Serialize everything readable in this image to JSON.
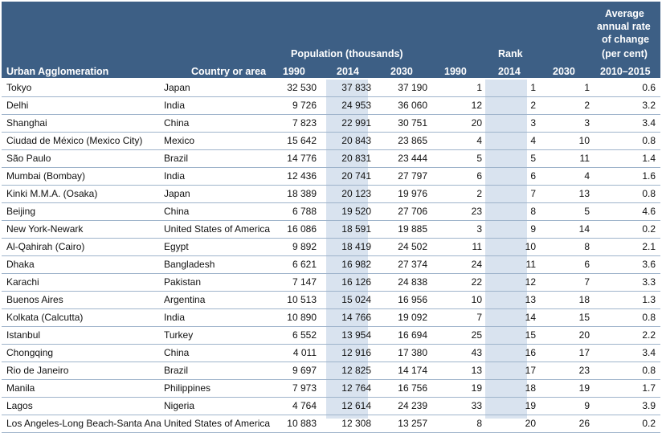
{
  "header": {
    "agglomeration": "Urban Agglomeration",
    "country": "Country or area",
    "population_group": "Population (thousands)",
    "rank_group": "Rank",
    "rate_line1": "Average",
    "rate_line2": "annual rate",
    "rate_line3": "of change",
    "rate_line4": "(per cent)",
    "pop_1990": "1990",
    "pop_2014": "2014",
    "pop_2030": "2030",
    "rank_1990": "1990",
    "rank_2014": "2014",
    "rank_2030": "2030",
    "rate_period": "2010–2015"
  },
  "rows": [
    {
      "city": "Tokyo",
      "country": "Japan",
      "p1990": "32 530",
      "p2014": "37 833",
      "p2030": "37 190",
      "r1990": "1",
      "r2014": "1",
      "r2030": "1",
      "rate": "0.6"
    },
    {
      "city": "Delhi",
      "country": "India",
      "p1990": "9 726",
      "p2014": "24 953",
      "p2030": "36 060",
      "r1990": "12",
      "r2014": "2",
      "r2030": "2",
      "rate": "3.2"
    },
    {
      "city": "Shanghai",
      "country": "China",
      "p1990": "7 823",
      "p2014": "22 991",
      "p2030": "30 751",
      "r1990": "20",
      "r2014": "3",
      "r2030": "3",
      "rate": "3.4"
    },
    {
      "city": "Ciudad de México (Mexico City)",
      "country": "Mexico",
      "p1990": "15 642",
      "p2014": "20 843",
      "p2030": "23 865",
      "r1990": "4",
      "r2014": "4",
      "r2030": "10",
      "rate": "0.8"
    },
    {
      "city": "São Paulo",
      "country": "Brazil",
      "p1990": "14 776",
      "p2014": "20 831",
      "p2030": "23 444",
      "r1990": "5",
      "r2014": "5",
      "r2030": "11",
      "rate": "1.4"
    },
    {
      "city": "Mumbai (Bombay)",
      "country": "India",
      "p1990": "12 436",
      "p2014": "20 741",
      "p2030": "27 797",
      "r1990": "6",
      "r2014": "6",
      "r2030": "4",
      "rate": "1.6"
    },
    {
      "city": "Kinki M.M.A. (Osaka)",
      "country": "Japan",
      "p1990": "18 389",
      "p2014": "20 123",
      "p2030": "19 976",
      "r1990": "2",
      "r2014": "7",
      "r2030": "13",
      "rate": "0.8"
    },
    {
      "city": "Beijing",
      "country": "China",
      "p1990": "6 788",
      "p2014": "19 520",
      "p2030": "27 706",
      "r1990": "23",
      "r2014": "8",
      "r2030": "5",
      "rate": "4.6"
    },
    {
      "city": "New York-Newark",
      "country": "United States of America",
      "p1990": "16 086",
      "p2014": "18 591",
      "p2030": "19 885",
      "r1990": "3",
      "r2014": "9",
      "r2030": "14",
      "rate": "0.2"
    },
    {
      "city": "Al-Qahirah (Cairo)",
      "country": "Egypt",
      "p1990": "9 892",
      "p2014": "18 419",
      "p2030": "24 502",
      "r1990": "11",
      "r2014": "10",
      "r2030": "8",
      "rate": "2.1"
    },
    {
      "city": "Dhaka",
      "country": "Bangladesh",
      "p1990": "6 621",
      "p2014": "16 982",
      "p2030": "27 374",
      "r1990": "24",
      "r2014": "11",
      "r2030": "6",
      "rate": "3.6"
    },
    {
      "city": "Karachi",
      "country": "Pakistan",
      "p1990": "7 147",
      "p2014": "16 126",
      "p2030": "24 838",
      "r1990": "22",
      "r2014": "12",
      "r2030": "7",
      "rate": "3.3"
    },
    {
      "city": "Buenos Aires",
      "country": "Argentina",
      "p1990": "10 513",
      "p2014": "15 024",
      "p2030": "16 956",
      "r1990": "10",
      "r2014": "13",
      "r2030": "18",
      "rate": "1.3"
    },
    {
      "city": "Kolkata (Calcutta)",
      "country": "India",
      "p1990": "10 890",
      "p2014": "14 766",
      "p2030": "19 092",
      "r1990": "7",
      "r2014": "14",
      "r2030": "15",
      "rate": "0.8"
    },
    {
      "city": "Istanbul",
      "country": "Turkey",
      "p1990": "6 552",
      "p2014": "13 954",
      "p2030": "16 694",
      "r1990": "25",
      "r2014": "15",
      "r2030": "20",
      "rate": "2.2"
    },
    {
      "city": "Chongqing",
      "country": "China",
      "p1990": "4 011",
      "p2014": "12 916",
      "p2030": "17 380",
      "r1990": "43",
      "r2014": "16",
      "r2030": "17",
      "rate": "3.4"
    },
    {
      "city": "Rio de Janeiro",
      "country": "Brazil",
      "p1990": "9 697",
      "p2014": "12 825",
      "p2030": "14 174",
      "r1990": "13",
      "r2014": "17",
      "r2030": "23",
      "rate": "0.8"
    },
    {
      "city": "Manila",
      "country": "Philippines",
      "p1990": "7 973",
      "p2014": "12 764",
      "p2030": "16 756",
      "r1990": "19",
      "r2014": "18",
      "r2030": "19",
      "rate": "1.7"
    },
    {
      "city": "Lagos",
      "country": "Nigeria",
      "p1990": "4 764",
      "p2014": "12 614",
      "p2030": "24 239",
      "r1990": "33",
      "r2014": "19",
      "r2030": "9",
      "rate": "3.9"
    },
    {
      "city": "Los Angeles-Long Beach-Santa Ana",
      "country": "United States of America",
      "p1990": "10 883",
      "p2014": "12 308",
      "p2030": "13 257",
      "r1990": "8",
      "r2014": "20",
      "r2030": "26",
      "rate": "0.2"
    }
  ],
  "colors": {
    "header_bg": "#3d5f85",
    "shade": "#d9e3ef",
    "rule": "#9fb4cb"
  }
}
